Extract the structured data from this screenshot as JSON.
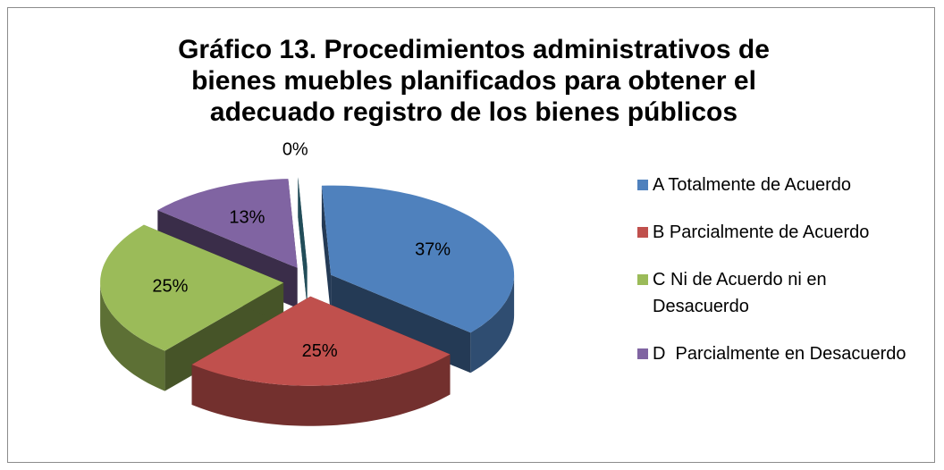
{
  "chart_data": {
    "type": "pie",
    "title": "Gráfico 13. Procedimientos administrativos de bienes muebles planificados para obtener el adecuado registro de los bienes públicos",
    "categories": [
      "A Totalmente de Acuerdo",
      "B Parcialmente de Acuerdo",
      "C Ni de Acuerdo ni en Desacuerdo",
      "D  Parcialmente en Desacuerdo",
      null
    ],
    "values": [
      37,
      25,
      25,
      13,
      0
    ],
    "value_labels": [
      "37%",
      "25%",
      "25%",
      "13%",
      "0%"
    ],
    "colors": [
      "#4f81bd",
      "#c0504d",
      "#9bbb59",
      "#8064a2",
      "#4bacc6"
    ],
    "legend": "right"
  }
}
